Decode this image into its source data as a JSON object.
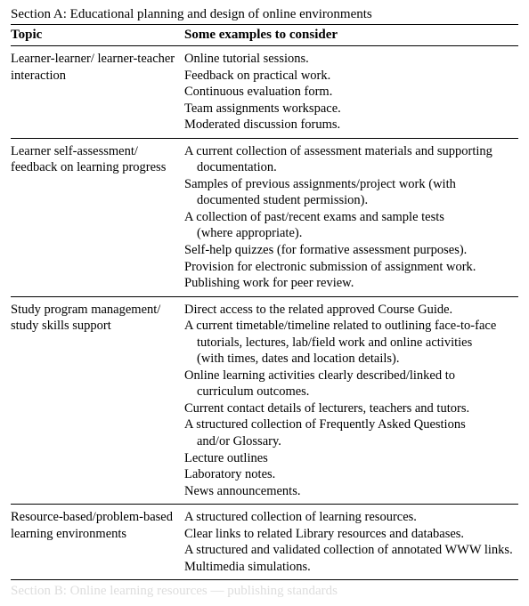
{
  "section_a_title": "Section A: Educational planning and design of online environments",
  "section_b_title": "Section B: Online learning resources — publishing standards",
  "columns": {
    "topic": "Topic",
    "examples": "Some examples to consider"
  },
  "rows": [
    {
      "topic": "Learner-learner/ learner-teacher interaction",
      "examples": [
        {
          "text": "Online tutorial sessions.",
          "indent": false
        },
        {
          "text": "Feedback on practical work.",
          "indent": false
        },
        {
          "text": "Continuous evaluation form.",
          "indent": false
        },
        {
          "text": "Team assignments workspace.",
          "indent": false
        },
        {
          "text": "Moderated discussion forums.",
          "indent": false
        }
      ]
    },
    {
      "topic": "Learner self-assessment/ feedback on learning progress",
      "examples": [
        {
          "text": "A current collection of assessment materials and supporting",
          "indent": false
        },
        {
          "text": "documentation.",
          "indent": true
        },
        {
          "text": "Samples of previous assignments/project work (with",
          "indent": false
        },
        {
          "text": "documented student permission).",
          "indent": true
        },
        {
          "text": "A collection of past/recent exams and sample tests",
          "indent": false
        },
        {
          "text": "(where appropriate).",
          "indent": true
        },
        {
          "text": "Self-help quizzes (for formative assessment purposes).",
          "indent": false
        },
        {
          "text": "Provision for electronic submission of assignment work.",
          "indent": false
        },
        {
          "text": "Publishing work for peer review.",
          "indent": false
        }
      ]
    },
    {
      "topic": "Study program management/ study skills support",
      "examples": [
        {
          "text": "Direct access to the related approved Course Guide.",
          "indent": false
        },
        {
          "text": "A current timetable/timeline related to outlining face-to-face",
          "indent": false
        },
        {
          "text": "tutorials, lectures, lab/field work and online activities",
          "indent": true
        },
        {
          "text": "(with times, dates and location details).",
          "indent": true
        },
        {
          "text": "Online learning activities clearly described/linked to",
          "indent": false
        },
        {
          "text": "curriculum outcomes.",
          "indent": true
        },
        {
          "text": "Current contact details of lecturers, teachers and tutors.",
          "indent": false
        },
        {
          "text": "A structured collection of Frequently Asked Questions",
          "indent": false
        },
        {
          "text": "and/or Glossary.",
          "indent": true
        },
        {
          "text": "Lecture outlines",
          "indent": false
        },
        {
          "text": "Laboratory notes.",
          "indent": false
        },
        {
          "text": "News announcements.",
          "indent": false
        }
      ]
    },
    {
      "topic": "Resource-based/problem-based learning environments",
      "examples": [
        {
          "text": "A structured collection of learning resources.",
          "indent": false
        },
        {
          "text": "Clear links to related Library resources and databases.",
          "indent": false
        },
        {
          "text": "A structured and validated collection of annotated WWW links.",
          "indent": false
        },
        {
          "text": "Multimedia simulations.",
          "indent": false
        }
      ]
    }
  ]
}
